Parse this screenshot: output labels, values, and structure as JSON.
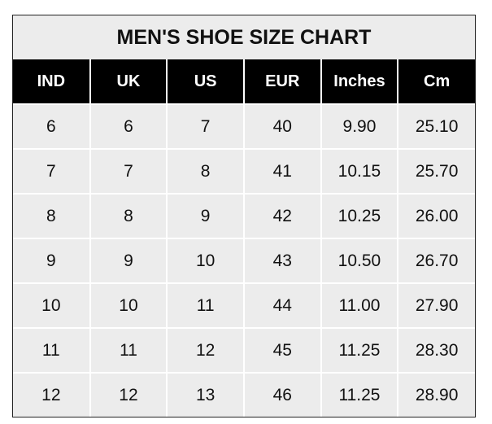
{
  "title": "MEN'S SHOE SIZE CHART",
  "headers": [
    "IND",
    "UK",
    "US",
    "EUR",
    "Inches",
    "Cm"
  ],
  "rows": [
    [
      "6",
      "6",
      "7",
      "40",
      "9.90",
      "25.10"
    ],
    [
      "7",
      "7",
      "8",
      "41",
      "10.15",
      "25.70"
    ],
    [
      "8",
      "8",
      "9",
      "42",
      "10.25",
      "26.00"
    ],
    [
      "9",
      "9",
      "10",
      "43",
      "10.50",
      "26.70"
    ],
    [
      "10",
      "10",
      "11",
      "44",
      "11.00",
      "27.90"
    ],
    [
      "11",
      "11",
      "12",
      "45",
      "11.25",
      "28.30"
    ],
    [
      "12",
      "12",
      "13",
      "46",
      "11.25",
      "28.90"
    ]
  ],
  "colors": {
    "header_bg": "#000000",
    "cell_bg": "#ececec"
  }
}
